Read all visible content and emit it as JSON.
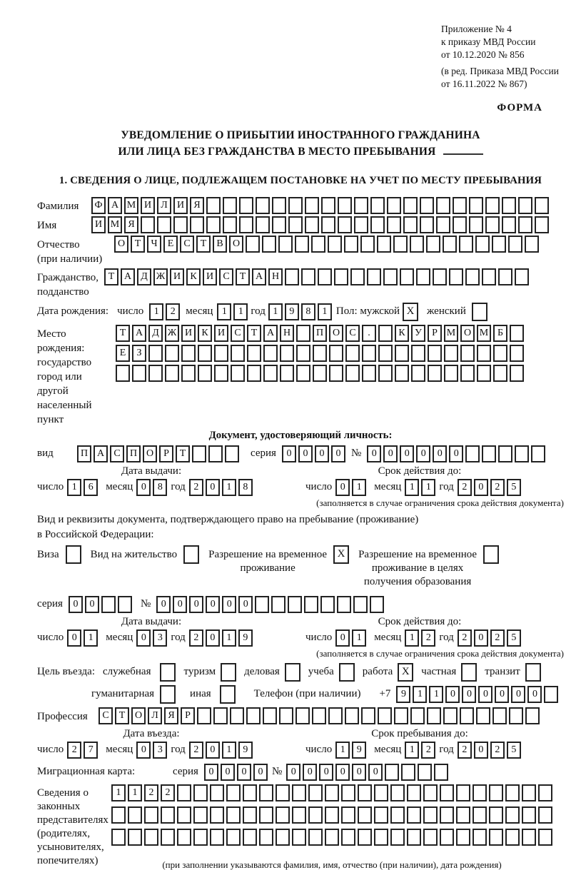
{
  "header": {
    "annex_lines": [
      "Приложение № 4",
      "к приказу МВД России",
      "от 10.12.2020 № 856"
    ],
    "amendment_lines": [
      "(в ред. Приказа МВД России",
      "от 16.11.2022 № 867)"
    ],
    "form_label": "ФОРМА"
  },
  "title": {
    "line1": "УВЕДОМЛЕНИЕ О ПРИБЫТИИ ИНОСТРАННОГО ГРАЖДАНИНА",
    "line2": "ИЛИ ЛИЦА БЕЗ ГРАЖДАНСТВА В МЕСТО ПРЕБЫВАНИЯ",
    "section1": "1. СВЕДЕНИЯ О ЛИЦЕ, ПОДЛЕЖАЩЕМ ПОСТАНОВКЕ НА УЧЕТ ПО МЕСТУ ПРЕБЫВАНИЯ"
  },
  "labels": {
    "surname": "Фамилия",
    "given_name": "Имя",
    "patronymic": [
      "Отчество",
      "(при наличии)"
    ],
    "citizenship": [
      "Гражданство,",
      "подданство"
    ],
    "birth_date": "Дата рождения:",
    "day": "число",
    "month": "месяц",
    "year": "год",
    "sex_male": "Пол: мужской",
    "sex_female": "женский",
    "birth_place": [
      "Место рождения:",
      "государство",
      "город или другой",
      "населенный пункт"
    ],
    "identity_doc_heading": "Документ, удостоверяющий личность:",
    "doc_type": "вид",
    "series": "серия",
    "number": "№",
    "issue_date": "Дата выдачи:",
    "valid_until": "Срок действия до:",
    "validity_note": "(заполняется в случае ограничения срока действия документа)",
    "residence_line1": "Вид и реквизиты документа, подтверждающего право на пребывание (проживание)",
    "residence_line2": "в Российской Федерации:",
    "visa": "Виза",
    "residence_permit": "Вид на жительство",
    "temp_residence": [
      "Разрешение на временное",
      "проживание"
    ],
    "temp_residence_edu": [
      "Разрешение на временное",
      "проживание в целях",
      "получения образования"
    ],
    "entry_purpose": "Цель въезда:",
    "purpose_options": [
      "служебная",
      "туризм",
      "деловая",
      "учеба",
      "работа",
      "частная",
      "транзит"
    ],
    "humanitarian": "гуманитарная",
    "other": "иная",
    "phone_label": "Телефон (при наличии)",
    "phone_prefix": "+7",
    "profession": "Профессия",
    "entry_date": "Дата въезда:",
    "stay_until": "Срок пребывания до:",
    "migration_card": "Миграционная карта:",
    "representatives": [
      "Сведения о",
      "законных",
      "представителях",
      "(родителях,",
      "усыновителях,",
      "попечителях)"
    ],
    "representatives_note": "(при заполнении указываются фамилия, имя, отчество (при наличии), дата рождения)"
  },
  "values": {
    "surname": {
      "value": "ФАМИЛИЯ",
      "cells": 28
    },
    "given_name": {
      "value": "ИМЯ",
      "cells": 28
    },
    "patronymic": {
      "value": "ОТЧЕСТВО",
      "cells": 26
    },
    "citizenship": {
      "value": "ТАДЖИКИСТАН",
      "cells": 26
    },
    "birth_day": {
      "value": "12",
      "cells": 2
    },
    "birth_month": {
      "value": "11",
      "cells": 2
    },
    "birth_year": {
      "value": "1981",
      "cells": 4
    },
    "sex_male_check": "X",
    "sex_female_check": "",
    "birth_place_row1": {
      "value": "ТАДЖИКИСТАН ПОС. КУРМОМБ",
      "cells": 25
    },
    "birth_place_row2": {
      "value": "ЕЗ",
      "cells": 25
    },
    "birth_place_row3": {
      "value": "",
      "cells": 25
    },
    "id_doc_type": {
      "value": "ПАСПОРТ",
      "cells": 10
    },
    "id_series": {
      "value": "0000",
      "cells": 4
    },
    "id_number": {
      "value": "000000",
      "cells": 11
    },
    "id_issue_day": {
      "value": "16",
      "cells": 2
    },
    "id_issue_month": {
      "value": "08",
      "cells": 2
    },
    "id_issue_year": {
      "value": "2018",
      "cells": 4
    },
    "id_valid_day": {
      "value": "01",
      "cells": 2
    },
    "id_valid_month": {
      "value": "11",
      "cells": 2
    },
    "id_valid_year": {
      "value": "2025",
      "cells": 4
    },
    "visa_check": "",
    "residence_permit_check": "",
    "temp_residence_check": "X",
    "temp_residence_edu_check": "",
    "res_series": {
      "value": "00",
      "cells": 4
    },
    "res_number": {
      "value": "000000",
      "cells": 14
    },
    "res_issue_day": {
      "value": "01",
      "cells": 2
    },
    "res_issue_month": {
      "value": "03",
      "cells": 2
    },
    "res_issue_year": {
      "value": "2019",
      "cells": 4
    },
    "res_valid_day": {
      "value": "01",
      "cells": 2
    },
    "res_valid_month": {
      "value": "12",
      "cells": 2
    },
    "res_valid_year": {
      "value": "2025",
      "cells": 4
    },
    "purpose_checks": [
      "",
      "",
      "",
      "",
      "X",
      "",
      ""
    ],
    "humanitarian_check": "",
    "other_check": "",
    "phone": {
      "value": "911000000",
      "cells": 10
    },
    "profession": {
      "value": "СТОЛЯР",
      "cells": 27
    },
    "entry_day": {
      "value": "27",
      "cells": 2
    },
    "entry_month": {
      "value": "03",
      "cells": 2
    },
    "entry_year": {
      "value": "2019",
      "cells": 4
    },
    "stay_day": {
      "value": "19",
      "cells": 2
    },
    "stay_month": {
      "value": "12",
      "cells": 2
    },
    "stay_year": {
      "value": "2025",
      "cells": 4
    },
    "mig_series": {
      "value": "0000",
      "cells": 4
    },
    "mig_number": {
      "value": "000000",
      "cells": 10
    },
    "representatives_row1": {
      "value": "1122",
      "cells": 27
    },
    "representatives_row2": {
      "value": "",
      "cells": 27
    },
    "representatives_row3": {
      "value": "",
      "cells": 27
    }
  }
}
